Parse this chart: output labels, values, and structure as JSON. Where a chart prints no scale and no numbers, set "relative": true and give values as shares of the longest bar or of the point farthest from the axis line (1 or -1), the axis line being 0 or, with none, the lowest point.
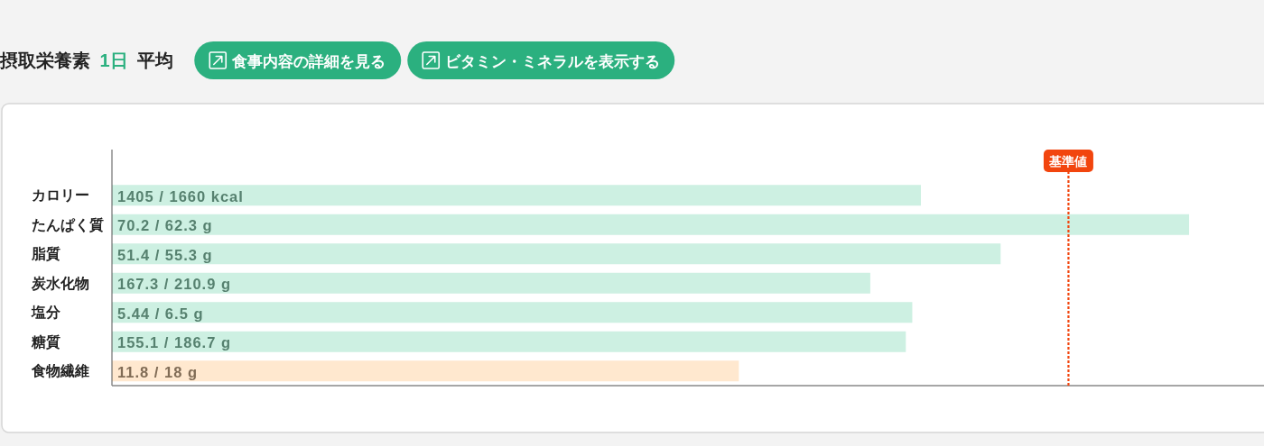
{
  "chart_data": {
    "type": "bar",
    "orientation": "horizontal",
    "relative": true,
    "title": "摂取栄養素 1日 平均",
    "annotations": [
      "食事内容の詳細を見る",
      "ビタミン・ミネラルを表示する",
      {
        "text": "1405 / 1660 kcal",
        "y": "カロリー"
      },
      {
        "text": "70.2 / 62.3 g",
        "y": "たんぱく質"
      },
      {
        "text": "51.4 / 55.3 g",
        "y": "脂質"
      },
      {
        "text": "167.3 / 210.9 g",
        "y": "炭水化物"
      },
      {
        "text": "5.44 / 6.5 g",
        "y": "塩分"
      },
      {
        "text": "155.1 / 186.7 g",
        "y": "糖質"
      },
      {
        "text": "11.8 / 18 g",
        "y": "食物繊維"
      }
    ],
    "categories": [
      "カロリー",
      "たんぱく質",
      "脂質",
      "炭水化物",
      "塩分",
      "糖質",
      "食物繊維"
    ],
    "values": [
      0.751,
      1,
      0.825,
      0.704,
      0.743,
      0.737,
      0.582
    ],
    "colors": [
      "#cdf0e2",
      "#cdf0e2",
      "#cdf0e2",
      "#cdf0e2",
      "#cdf0e2",
      "#cdf0e2",
      "#ffe8cf"
    ],
    "tick_labels": "y",
    "ref_lines": [
      {
        "axis": "x",
        "value": 0.888,
        "label": "基準値",
        "color": "#f2450e",
        "line_style": "dotted"
      }
    ]
  }
}
